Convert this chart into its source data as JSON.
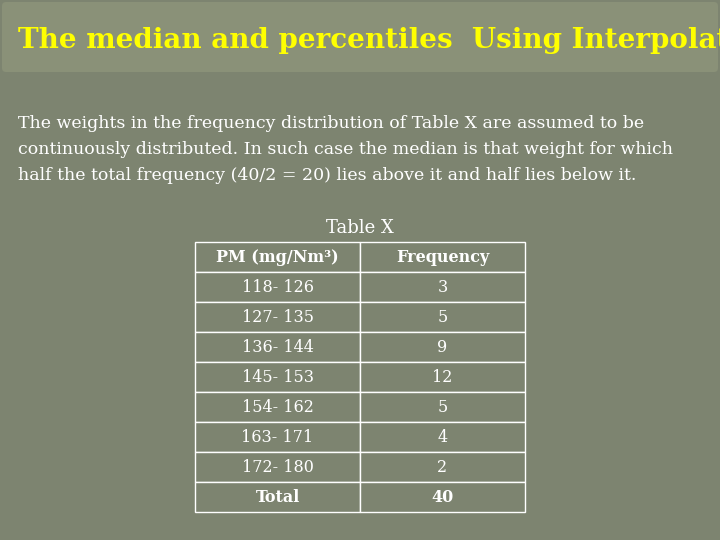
{
  "title": "The median and percentiles  Using Interpolation",
  "title_color": "#FFFF00",
  "title_fontsize": 20,
  "bg_color": "#7D8470",
  "title_bg_color": "#8A9178",
  "body_text": "The weights in the frequency distribution of Table X are assumed to be\ncontinuously distributed. In such case the median is that weight for which\nhalf the total frequency (40/2 = 20) lies above it and half lies below it.",
  "body_text_color": "#FFFFFF",
  "body_fontsize": 12.5,
  "table_title": "Table X",
  "table_title_color": "#FFFFFF",
  "table_title_fontsize": 13,
  "header_row": [
    "PM (mg/Nm³)",
    "Frequency"
  ],
  "table_data": [
    [
      "118- 126",
      "3"
    ],
    [
      "127- 135",
      "5"
    ],
    [
      "136- 144",
      "9"
    ],
    [
      "145- 153",
      "12"
    ],
    [
      "154- 162",
      "5"
    ],
    [
      "163- 171",
      "4"
    ],
    [
      "172- 180",
      "2"
    ],
    [
      "Total",
      "40"
    ]
  ],
  "header_bg": "#7D8470",
  "cell_bg": "#7D8470",
  "cell_text_color": "#FFFFFF",
  "header_text_color": "#FFFFFF",
  "cell_fontsize": 11.5,
  "header_fontsize": 11.5,
  "table_edge_color": "#FFFFFF"
}
